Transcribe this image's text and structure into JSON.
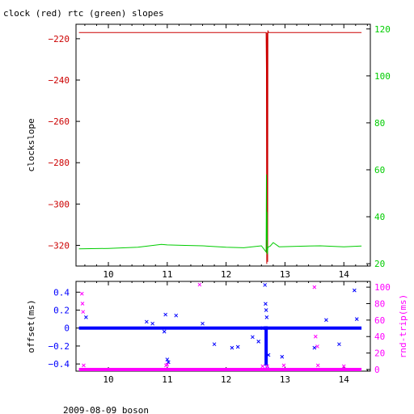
{
  "title": "clock (red) rtc (green) slopes",
  "footer": "2009-08-09 boson",
  "colors": {
    "clock": "#cc0000",
    "rtc": "#00cc00",
    "offset": "#0000ff",
    "rtt": "#ff00ff",
    "axis": "#000000"
  },
  "chart_data": [
    {
      "type": "line",
      "title": "clock (red) rtc (green) slopes",
      "xlabel": "",
      "ylabel": "clockslope",
      "y2label": "",
      "xlim": [
        9.45,
        14.45
      ],
      "ylim": [
        -330,
        -213
      ],
      "y2lim": [
        19,
        122
      ],
      "xticks": [
        10,
        11,
        12,
        13,
        14
      ],
      "yticks": [
        -220,
        -240,
        -260,
        -280,
        -300,
        -320
      ],
      "y2ticks": [
        20,
        40,
        60,
        80,
        100,
        120
      ],
      "grid": false,
      "series": [
        {
          "name": "clock",
          "axis": "left",
          "color": "#cc0000",
          "x": [
            9.5,
            10.0,
            10.5,
            11.0,
            11.5,
            12.0,
            12.5,
            12.68,
            12.685,
            12.69,
            12.695,
            12.7,
            12.705,
            12.71,
            12.72,
            12.8,
            13.0,
            13.5,
            14.0,
            14.3
          ],
          "y": [
            -217,
            -217,
            -217,
            -217,
            -217,
            -217,
            -217,
            -217,
            -235,
            -329,
            -217,
            -230,
            -328,
            -216,
            -217,
            -217,
            -217,
            -217,
            -217,
            -217
          ]
        },
        {
          "name": "rtc",
          "axis": "right",
          "color": "#00cc00",
          "x": [
            9.5,
            10.0,
            10.5,
            10.9,
            11.0,
            11.3,
            11.6,
            12.0,
            12.3,
            12.6,
            12.68,
            12.685,
            12.69,
            12.695,
            12.7,
            12.71,
            12.75,
            12.8,
            12.9,
            13.2,
            13.6,
            14.0,
            14.3
          ],
          "y": [
            26.3,
            26.5,
            27.0,
            28.2,
            28.0,
            27.8,
            27.6,
            27.0,
            26.8,
            27.6,
            25.0,
            58.0,
            30.0,
            42.0,
            24.0,
            27.0,
            27.5,
            29.0,
            27.2,
            27.4,
            27.6,
            27.2,
            27.5
          ]
        }
      ]
    },
    {
      "type": "scatter",
      "xlabel": "",
      "ylabel": "offset(ms)",
      "y2label": "rnd-trip(ms)",
      "xlim": [
        9.45,
        14.45
      ],
      "ylim": [
        -0.48,
        0.52
      ],
      "y2lim": [
        -2,
        107
      ],
      "xticks": [
        10,
        11,
        12,
        13,
        14
      ],
      "yticks": [
        0.4,
        0.2,
        0,
        -0.2,
        -0.4
      ],
      "y2ticks": [
        0,
        20,
        40,
        60,
        80,
        100
      ],
      "grid": false,
      "series": [
        {
          "name": "offset",
          "axis": "left",
          "color": "#0000ff",
          "baseline": {
            "from": 9.5,
            "to": 14.3,
            "y": 0.0
          },
          "x": [
            9.62,
            10.65,
            10.75,
            10.95,
            10.97,
            11.0,
            11.02,
            11.15,
            11.6,
            11.8,
            12.1,
            12.2,
            12.45,
            12.55,
            12.62,
            12.66,
            12.67,
            12.68,
            12.69,
            12.7,
            12.72,
            12.95,
            13.5,
            13.7,
            13.92,
            14.18,
            14.22
          ],
          "y": [
            0.12,
            0.07,
            0.05,
            -0.04,
            0.15,
            -0.35,
            -0.38,
            0.14,
            0.05,
            -0.18,
            -0.22,
            -0.21,
            -0.1,
            -0.15,
            0.0,
            0.48,
            0.27,
            0.2,
            0.12,
            -0.45,
            -0.3,
            -0.32,
            -0.22,
            0.09,
            -0.18,
            0.42,
            0.1
          ],
          "column": {
            "x": 12.68,
            "from": -0.42,
            "to": 0.02
          }
        },
        {
          "name": "rtt",
          "axis": "right",
          "color": "#ff00ff",
          "baseline": {
            "from": 9.5,
            "to": 14.3,
            "y": 0.0
          },
          "x": [
            9.55,
            9.56,
            9.57,
            9.58,
            10.98,
            11.0,
            11.55,
            12.62,
            12.7,
            12.98,
            13.5,
            13.52,
            13.55,
            13.56,
            14.0
          ],
          "y": [
            92,
            80,
            70,
            5,
            5,
            6,
            103,
            4,
            4,
            5,
            100,
            40,
            28,
            5,
            4
          ]
        }
      ]
    }
  ]
}
